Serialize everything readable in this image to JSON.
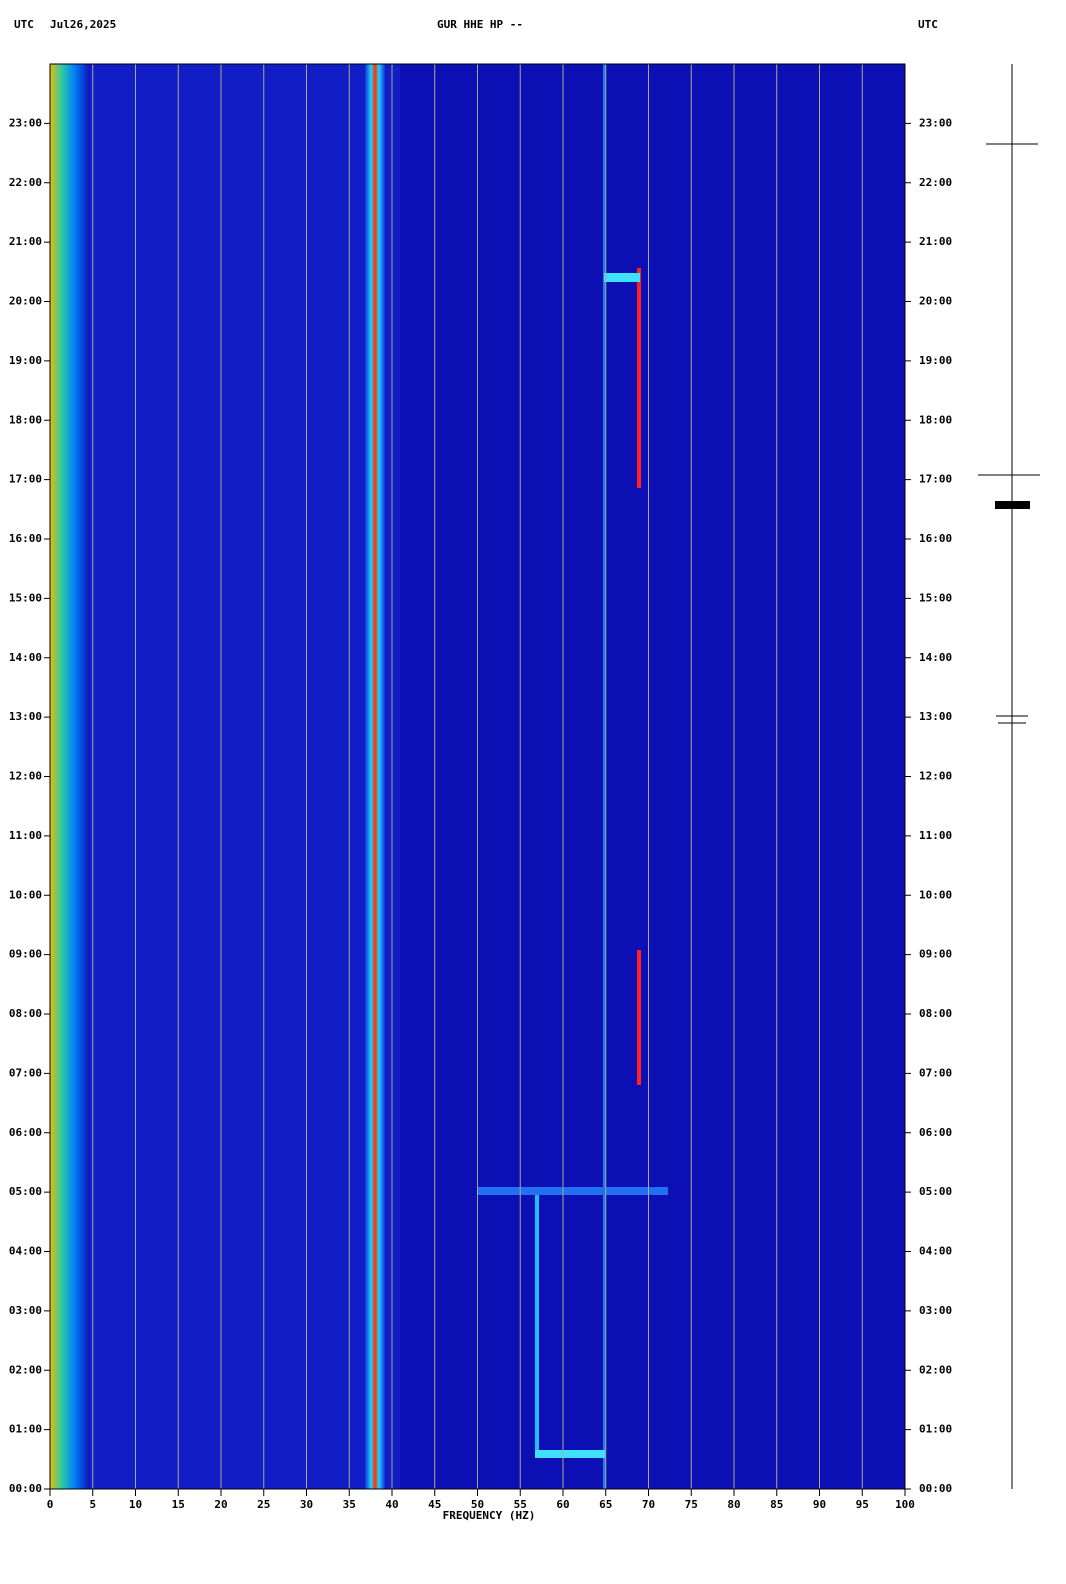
{
  "chart_data": {
    "type": "spectrogram",
    "title": "GUR HHE HP --",
    "time_zone": "UTC",
    "date": "Jul26,2025",
    "x_label": "FREQUENCY (HZ)",
    "xlim": [
      0,
      100
    ],
    "xticks": [
      0,
      5,
      10,
      15,
      20,
      25,
      30,
      35,
      40,
      45,
      50,
      55,
      60,
      65,
      70,
      75,
      80,
      85,
      90,
      95,
      100
    ],
    "ylim": [
      0,
      24
    ],
    "yticks": [
      {
        "value": 0,
        "label": "00:00"
      },
      {
        "value": 1,
        "label": "01:00"
      },
      {
        "value": 2,
        "label": "02:00"
      },
      {
        "value": 3,
        "label": "03:00"
      },
      {
        "value": 4,
        "label": "04:00"
      },
      {
        "value": 5,
        "label": "05:00"
      },
      {
        "value": 6,
        "label": "06:00"
      },
      {
        "value": 7,
        "label": "07:00"
      },
      {
        "value": 8,
        "label": "08:00"
      },
      {
        "value": 9,
        "label": "09:00"
      },
      {
        "value": 10,
        "label": "10:00"
      },
      {
        "value": 11,
        "label": "11:00"
      },
      {
        "value": 12,
        "label": "12:00"
      },
      {
        "value": 13,
        "label": "13:00"
      },
      {
        "value": 14,
        "label": "14:00"
      },
      {
        "value": 15,
        "label": "15:00"
      },
      {
        "value": 16,
        "label": "16:00"
      },
      {
        "value": 17,
        "label": "17:00"
      },
      {
        "value": 18,
        "label": "18:00"
      },
      {
        "value": 19,
        "label": "19:00"
      },
      {
        "value": 20,
        "label": "20:00"
      },
      {
        "value": 21,
        "label": "21:00"
      },
      {
        "value": 22,
        "label": "22:00"
      },
      {
        "value": 23,
        "label": "23:00"
      }
    ],
    "grid": true
  }
}
